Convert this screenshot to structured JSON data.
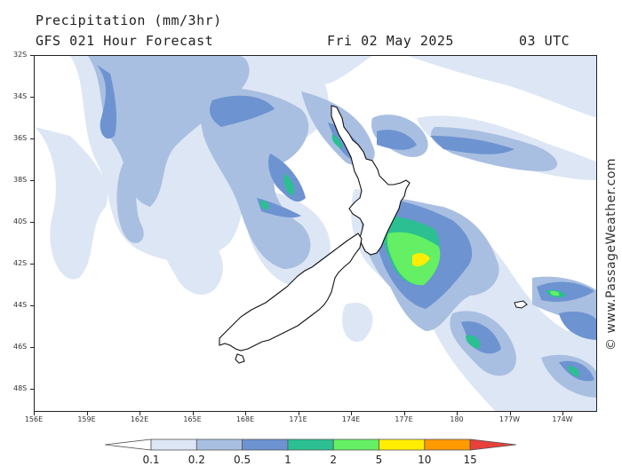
{
  "header": {
    "title": "Precipitation (mm/3hr)",
    "subtitle": "GFS 021 Hour Forecast",
    "date": "Fri 02 May 2025",
    "time": "03 UTC"
  },
  "watermark": "© www.PassageWeather.com",
  "lat_ticks": [
    "32S",
    "34S",
    "36S",
    "38S",
    "40S",
    "42S",
    "44S",
    "46S",
    "48S"
  ],
  "lon_ticks": [
    "156E",
    "159E",
    "162E",
    "165E",
    "168E",
    "171E",
    "174E",
    "177E",
    "180",
    "177W",
    "174W"
  ],
  "legend": {
    "labels": [
      "0.1",
      "0.2",
      "0.5",
      "1",
      "2",
      "5",
      "10",
      "15"
    ],
    "colors": [
      "#ffffff",
      "#dde6f4",
      "#a9bfe1",
      "#6d93d1",
      "#2bbf91",
      "#64ef64",
      "#ffee00",
      "#ff9a00",
      "#e8403b"
    ]
  },
  "colors": {
    "light": "#dde6f4",
    "pale": "#a9bfe1",
    "mid": "#6d93d1",
    "teal": "#2bbf91",
    "green": "#64ef64",
    "yellow": "#ffee00"
  }
}
